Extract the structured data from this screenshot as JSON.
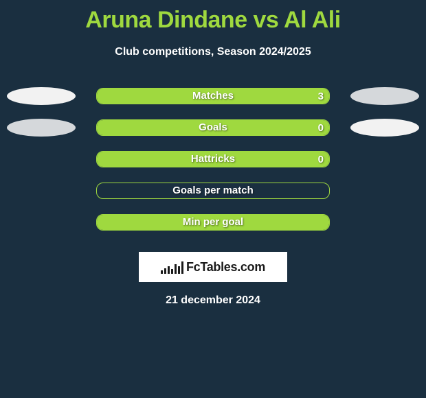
{
  "title": "Aruna Dindane vs Al Ali",
  "subtitle": "Club competitions, Season 2024/2025",
  "date": "21 december 2024",
  "logo_text": "FcTables.com",
  "colors": {
    "background": "#1a2f40",
    "accent": "#9fd93f",
    "text": "#ffffff",
    "ellipse_light": "#f2f2f2",
    "ellipse_dark": "#d5d8db",
    "logo_bg": "#ffffff",
    "logo_fg": "#1a1a1a"
  },
  "bar_outer_width": 340,
  "rows": [
    {
      "label": "Matches",
      "right_value": "3",
      "fill_percent": 100,
      "left_ellipse_color": "#f2f2f2",
      "right_ellipse_color": "#d5d8db"
    },
    {
      "label": "Goals",
      "right_value": "0",
      "fill_percent": 100,
      "left_ellipse_color": "#d5d8db",
      "right_ellipse_color": "#f2f2f2"
    },
    {
      "label": "Hattricks",
      "right_value": "0",
      "fill_percent": 100,
      "left_ellipse_color": null,
      "right_ellipse_color": null
    },
    {
      "label": "Goals per match",
      "right_value": "",
      "fill_percent": 0,
      "left_ellipse_color": null,
      "right_ellipse_color": null
    },
    {
      "label": "Min per goal",
      "right_value": "",
      "fill_percent": 100,
      "left_ellipse_color": null,
      "right_ellipse_color": null
    }
  ],
  "logo_bar_heights": [
    5,
    8,
    11,
    7,
    14,
    11,
    18
  ]
}
